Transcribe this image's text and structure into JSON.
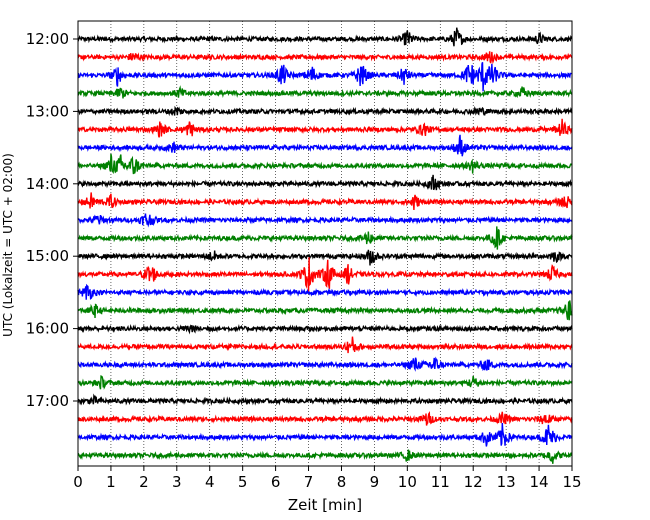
{
  "chart_data": {
    "type": "line",
    "title": "",
    "xlabel": "Zeit  [min]",
    "ylabel": "UTC (Lokalzeit = UTC + 02:00)",
    "xlim": [
      0,
      15
    ],
    "x_ticks": [
      0,
      1,
      2,
      3,
      4,
      5,
      6,
      7,
      8,
      9,
      10,
      11,
      12,
      13,
      14,
      15
    ],
    "x_tick_labels": [
      "0",
      "1",
      "2",
      "3",
      "4",
      "5",
      "6",
      "7",
      "8",
      "9",
      "10",
      "11",
      "12",
      "13",
      "14",
      "15"
    ],
    "y_tick_labels": [
      "12:00",
      "13:00",
      "14:00",
      "15:00",
      "16:00",
      "17:00"
    ],
    "grid": "vertical dotted at each minute",
    "trace_colors": [
      "#000000",
      "#ff0000",
      "#0000ff",
      "#008000"
    ],
    "traces": [
      {
        "time": "12:00",
        "color": "#000000",
        "events": [
          [
            10.0,
            1.4
          ],
          [
            11.5,
            1.8
          ],
          [
            14.0,
            0.8
          ]
        ]
      },
      {
        "time": "12:15",
        "color": "#ff0000",
        "events": [
          [
            1.7,
            0.9
          ],
          [
            12.5,
            1.0
          ]
        ]
      },
      {
        "time": "12:30",
        "color": "#0000ff",
        "events": [
          [
            1.2,
            1.5
          ],
          [
            6.2,
            2.0
          ],
          [
            7.1,
            1.6
          ],
          [
            8.6,
            2.2
          ],
          [
            9.9,
            1.4
          ],
          [
            11.9,
            2.5
          ],
          [
            12.3,
            2.4
          ],
          [
            12.6,
            1.8
          ]
        ]
      },
      {
        "time": "12:45",
        "color": "#008000",
        "events": [
          [
            1.3,
            1.0
          ],
          [
            3.1,
            0.8
          ],
          [
            13.5,
            0.9
          ]
        ]
      },
      {
        "time": "13:00",
        "color": "#000000",
        "events": [
          [
            3.0,
            0.7
          ],
          [
            12.2,
            0.8
          ]
        ]
      },
      {
        "time": "13:15",
        "color": "#ff0000",
        "events": [
          [
            2.5,
            1.2
          ],
          [
            3.4,
            1.4
          ],
          [
            10.5,
            1.1
          ],
          [
            14.7,
            1.4
          ]
        ]
      },
      {
        "time": "13:30",
        "color": "#0000ff",
        "events": [
          [
            2.9,
            0.8
          ],
          [
            11.6,
            1.9
          ]
        ]
      },
      {
        "time": "13:45",
        "color": "#008000",
        "events": [
          [
            1.0,
            1.6
          ],
          [
            1.3,
            1.4
          ],
          [
            1.7,
            1.8
          ],
          [
            12.0,
            1.1
          ]
        ]
      },
      {
        "time": "14:00",
        "color": "#000000",
        "events": [
          [
            10.8,
            1.4
          ]
        ]
      },
      {
        "time": "14:15",
        "color": "#ff0000",
        "events": [
          [
            0.4,
            1.2
          ],
          [
            1.0,
            1.0
          ],
          [
            10.2,
            1.3
          ],
          [
            14.8,
            1.2
          ]
        ]
      },
      {
        "time": "14:30",
        "color": "#0000ff",
        "events": [
          [
            0.6,
            1.0
          ],
          [
            2.1,
            1.6
          ]
        ]
      },
      {
        "time": "14:45",
        "color": "#008000",
        "events": [
          [
            8.8,
            1.2
          ],
          [
            12.7,
            2.0
          ]
        ]
      },
      {
        "time": "15:00",
        "color": "#000000",
        "events": [
          [
            4.1,
            0.9
          ],
          [
            8.9,
            1.6
          ],
          [
            14.5,
            0.9
          ]
        ]
      },
      {
        "time": "15:15",
        "color": "#ff0000",
        "events": [
          [
            2.2,
            2.2
          ],
          [
            7.0,
            3.0
          ],
          [
            7.6,
            2.6
          ],
          [
            8.2,
            1.5
          ],
          [
            14.4,
            1.3
          ]
        ]
      },
      {
        "time": "15:30",
        "color": "#0000ff",
        "events": [
          [
            0.3,
            1.5
          ]
        ]
      },
      {
        "time": "15:45",
        "color": "#008000",
        "events": [
          [
            0.5,
            1.0
          ],
          [
            14.9,
            1.8
          ]
        ]
      },
      {
        "time": "16:00",
        "color": "#000000",
        "events": [
          [
            3.4,
            0.7
          ]
        ]
      },
      {
        "time": "16:15",
        "color": "#ff0000",
        "events": [
          [
            8.3,
            1.8
          ]
        ]
      },
      {
        "time": "16:30",
        "color": "#0000ff",
        "events": [
          [
            10.2,
            1.4
          ],
          [
            10.8,
            1.6
          ],
          [
            12.4,
            1.1
          ]
        ]
      },
      {
        "time": "16:45",
        "color": "#008000",
        "events": [
          [
            0.7,
            0.9
          ],
          [
            12.0,
            1.0
          ]
        ]
      },
      {
        "time": "17:00",
        "color": "#000000",
        "events": [
          [
            0.5,
            0.6
          ]
        ]
      },
      {
        "time": "17:15",
        "color": "#ff0000",
        "events": [
          [
            10.6,
            1.2
          ],
          [
            12.9,
            1.0
          ],
          [
            14.2,
            1.3
          ]
        ]
      },
      {
        "time": "17:30",
        "color": "#0000ff",
        "events": [
          [
            12.4,
            1.3
          ],
          [
            12.9,
            2.2
          ],
          [
            14.3,
            2.4
          ]
        ]
      },
      {
        "time": "17:45",
        "color": "#008000",
        "events": [
          [
            10.0,
            0.9
          ],
          [
            14.4,
            1.2
          ]
        ]
      }
    ]
  }
}
